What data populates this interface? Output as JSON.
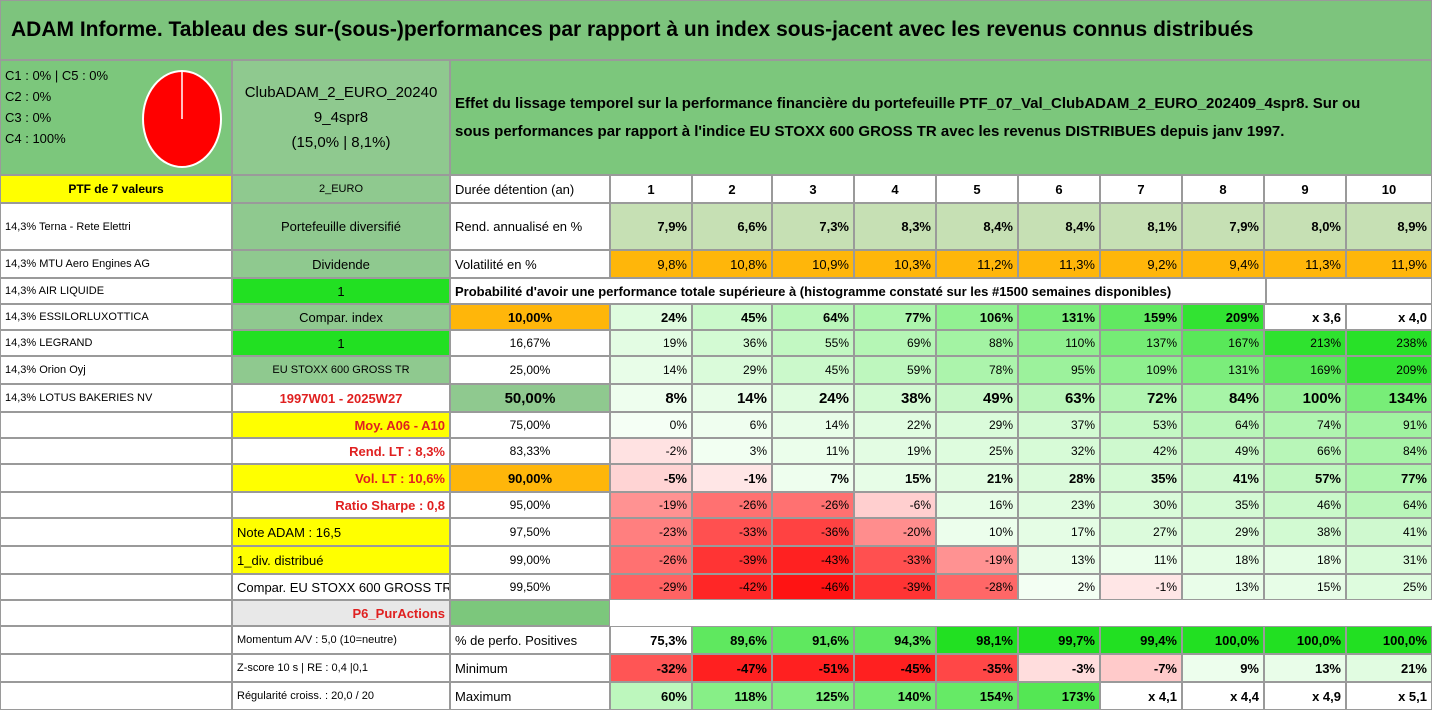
{
  "title": "ADAM Informe. Tableau des sur-(sous-)performances par rapport à un index sous-jacent avec les revenus connus distribués",
  "classes": [
    "C1 : 0% | C5 : 0%",
    "C2 : 0%",
    "C3 : 0%",
    "C4 : 100%"
  ],
  "pie": {
    "color": "#ff0000",
    "value_pct": 100
  },
  "portfolio_name": [
    "ClubADAM_2_EURO_20240",
    "9_4spr8",
    "(15,0% | 8,1%)"
  ],
  "description": [
    "Effet du lissage temporel sur la performance financière du portefeuille PTF_07_Val_ClubADAM_2_EURO_202409_4spr8. Sur ou",
    "sous performances par rapport à l'indice EU STOXX 600 GROSS TR avec les revenus DISTRIBUES depuis janv 1997."
  ],
  "left": {
    "header": "PTF de 7 valeurs",
    "holdings": [
      "14,3% Terna - Rete Elettri",
      "14,3% MTU Aero Engines AG",
      "14,3% AIR LIQUIDE",
      "14,3% ESSILORLUXOTTICA",
      "14,3% LEGRAND",
      "14,3% Orion Oyj",
      "14,3% LOTUS BAKERIES NV"
    ]
  },
  "mid": {
    "currency": "2_EURO",
    "diversified": "Portefeuille diversifié",
    "dividend_label": "Dividende",
    "dividend_value": "1",
    "compar_index": "Compar. index",
    "compar_value": "1",
    "index_name": "EU STOXX 600 GROSS TR",
    "period": "1997W01 - 2025W27",
    "moy": "Moy. A06 - A10",
    "rend_lt": "Rend. LT : 8,3%",
    "vol_lt": "Vol. LT : 10,6%",
    "sharpe": "Ratio Sharpe : 0,8",
    "note": "Note ADAM : 16,5",
    "div": "1_div. distribué",
    "compar_full": "Compar. EU STOXX 600 GROSS TR",
    "p6": "P6_PurActions",
    "momentum": "Momentum A/V : 5,0 (10=neutre)",
    "zscore": "Z-score 10 s | RE : 0,4 |0,1",
    "regularite": "Régularité croiss. : 20,0 / 20"
  },
  "table": {
    "duration_label": "Durée détention (an)",
    "years": [
      "1",
      "2",
      "3",
      "4",
      "5",
      "6",
      "7",
      "8",
      "9",
      "10"
    ],
    "rend_label": "Rend. annualisé en %",
    "rend": [
      "7,9%",
      "6,6%",
      "7,3%",
      "8,3%",
      "8,4%",
      "8,4%",
      "8,1%",
      "7,9%",
      "8,0%",
      "8,9%"
    ],
    "vol_label": "Volatilité en %",
    "vol": [
      "9,8%",
      "10,8%",
      "10,9%",
      "10,3%",
      "11,2%",
      "11,3%",
      "9,2%",
      "9,4%",
      "11,3%",
      "11,9%"
    ],
    "prob_label": "Probabilité d'avoir une performance totale supérieure à (histogramme constaté sur les #1500 semaines disponibles)",
    "pct_rows": [
      {
        "p": "10,00%",
        "v": [
          "24%",
          "45%",
          "64%",
          "77%",
          "106%",
          "131%",
          "159%",
          "209%",
          "x 3,6",
          "x 4,0"
        ]
      },
      {
        "p": "16,67%",
        "v": [
          "19%",
          "36%",
          "55%",
          "69%",
          "88%",
          "110%",
          "137%",
          "167%",
          "213%",
          "238%"
        ]
      },
      {
        "p": "25,00%",
        "v": [
          "14%",
          "29%",
          "45%",
          "59%",
          "78%",
          "95%",
          "109%",
          "131%",
          "169%",
          "209%"
        ]
      },
      {
        "p": "50,00%",
        "v": [
          "8%",
          "14%",
          "24%",
          "38%",
          "49%",
          "63%",
          "72%",
          "84%",
          "100%",
          "134%"
        ]
      },
      {
        "p": "75,00%",
        "v": [
          "0%",
          "6%",
          "14%",
          "22%",
          "29%",
          "37%",
          "53%",
          "64%",
          "74%",
          "91%"
        ]
      },
      {
        "p": "83,33%",
        "v": [
          "-2%",
          "3%",
          "11%",
          "19%",
          "25%",
          "32%",
          "42%",
          "49%",
          "66%",
          "84%"
        ]
      },
      {
        "p": "90,00%",
        "v": [
          "-5%",
          "-1%",
          "7%",
          "15%",
          "21%",
          "28%",
          "35%",
          "41%",
          "57%",
          "77%"
        ]
      },
      {
        "p": "95,00%",
        "v": [
          "-19%",
          "-26%",
          "-26%",
          "-6%",
          "16%",
          "23%",
          "30%",
          "35%",
          "46%",
          "64%"
        ]
      },
      {
        "p": "97,50%",
        "v": [
          "-23%",
          "-33%",
          "-36%",
          "-20%",
          "10%",
          "17%",
          "27%",
          "29%",
          "38%",
          "41%"
        ]
      },
      {
        "p": "99,00%",
        "v": [
          "-26%",
          "-39%",
          "-43%",
          "-33%",
          "-19%",
          "13%",
          "11%",
          "18%",
          "18%",
          "31%"
        ]
      },
      {
        "p": "99,50%",
        "v": [
          "-29%",
          "-42%",
          "-46%",
          "-39%",
          "-28%",
          "2%",
          "-1%",
          "13%",
          "15%",
          "25%"
        ]
      }
    ],
    "pos_label": "% de perfo. Positives",
    "pos": [
      "75,3%",
      "89,6%",
      "91,6%",
      "94,3%",
      "98,1%",
      "99,7%",
      "99,4%",
      "100,0%",
      "100,0%",
      "100,0%"
    ],
    "min_label": "Minimum",
    "min": [
      "-32%",
      "-47%",
      "-51%",
      "-45%",
      "-35%",
      "-3%",
      "-7%",
      "9%",
      "13%",
      "21%"
    ],
    "max_label": "Maximum",
    "max": [
      "60%",
      "118%",
      "125%",
      "140%",
      "154%",
      "173%",
      "x 4,1",
      "x 4,4",
      "x 4,9",
      "x 5,1"
    ]
  },
  "colors": {
    "title_bg": "#7dc47d",
    "yellow": "#ffff00",
    "orange": "#ffb60a",
    "green": "#22e022",
    "red": "#ff0000"
  }
}
